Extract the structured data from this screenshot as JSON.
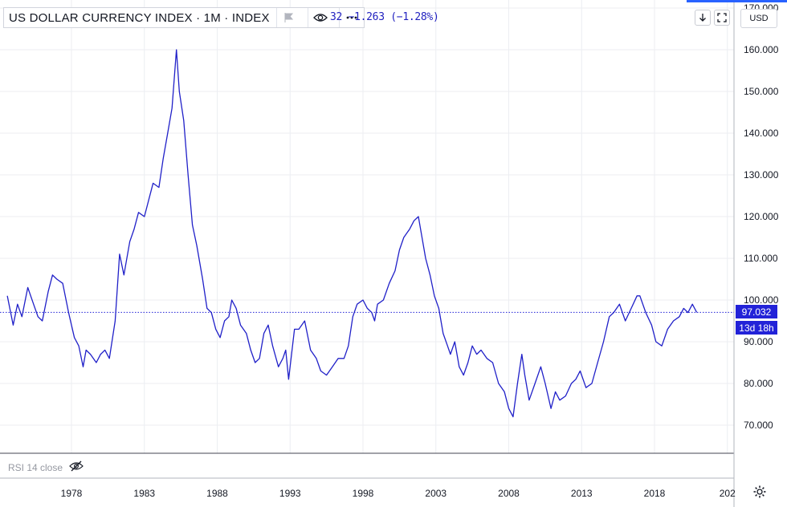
{
  "legend": {
    "symbol_title": "US DOLLAR CURRENCY INDEX · 1M · INDEX",
    "change_text": "32  −1.263 (−1.28%)"
  },
  "currency_badge": "USD",
  "price_tag": "97.032",
  "countdown_tag": "13d 18h",
  "rsi": {
    "label": "RSI 14 close"
  },
  "icons": {
    "legend_tools": [
      "flag-icon",
      "eye-icon",
      "more-icon"
    ],
    "toolbar": [
      "download-icon",
      "fullscreen-icon"
    ],
    "settings": "gear-icon"
  },
  "colors": {
    "line": "#2020c8",
    "price_line": "#2222d8",
    "grid": "#eceef2",
    "axis_text": "#131722"
  },
  "chart_data": {
    "type": "line",
    "title": "",
    "xlabel": "",
    "ylabel": "",
    "y_axis_side": "right",
    "ylim": [
      63,
      170
    ],
    "xlim": [
      1973.6,
      2022.6
    ],
    "y_ticks": [
      "70.000",
      "80.000",
      "90.000",
      "100.000",
      "110.000",
      "120.000",
      "130.000",
      "140.000",
      "150.000",
      "160.000",
      "170.000"
    ],
    "x_ticks": [
      "1978",
      "1983",
      "1988",
      "1993",
      "1998",
      "2003",
      "2008",
      "2013",
      "2018",
      "202"
    ],
    "last_value": 97.032,
    "grid": true,
    "series": [
      {
        "x": [
          1973.6,
          1974.0,
          1974.3,
          1974.6,
          1975.0,
          1975.4,
          1975.7,
          1976.0,
          1976.4,
          1976.7,
          1977.0,
          1977.4,
          1977.8,
          1978.2,
          1978.5,
          1978.8,
          1979.0,
          1979.3,
          1979.7,
          1980.0,
          1980.3,
          1980.6,
          1981.0,
          1981.3,
          1981.6,
          1982.0,
          1982.3,
          1982.6,
          1983.0,
          1983.3,
          1983.6,
          1984.0,
          1984.3,
          1984.6,
          1984.9,
          1985.2,
          1985.4,
          1985.7,
          1986.0,
          1986.3,
          1986.6,
          1987.0,
          1987.3,
          1987.6,
          1987.9,
          1988.2,
          1988.5,
          1988.8,
          1989.0,
          1989.3,
          1989.6,
          1990.0,
          1990.3,
          1990.6,
          1990.9,
          1991.2,
          1991.5,
          1991.8,
          1992.2,
          1992.5,
          1992.7,
          1992.9,
          1993.3,
          1993.6,
          1994.0,
          1994.4,
          1994.8,
          1995.1,
          1995.5,
          1995.9,
          1996.3,
          1996.7,
          1997.0,
          1997.3,
          1997.6,
          1998.0,
          1998.3,
          1998.6,
          1998.8,
          1999.0,
          1999.4,
          1999.8,
          2000.2,
          2000.5,
          2000.8,
          2001.2,
          2001.5,
          2001.8,
          2002.0,
          2002.3,
          2002.6,
          2002.9,
          2003.2,
          2003.5,
          2003.8,
          2004.0,
          2004.3,
          2004.6,
          2004.9,
          2005.2,
          2005.5,
          2005.8,
          2006.1,
          2006.5,
          2006.9,
          2007.3,
          2007.7,
          2008.0,
          2008.3,
          2008.6,
          2008.9,
          2009.1,
          2009.4,
          2009.8,
          2010.2,
          2010.5,
          2010.9,
          2011.2,
          2011.5,
          2011.9,
          2012.3,
          2012.6,
          2012.9,
          2013.3,
          2013.7,
          2014.1,
          2014.5,
          2014.9,
          2015.2,
          2015.6,
          2016.0,
          2016.4,
          2016.8,
          2017.0,
          2017.4,
          2017.8,
          2018.1,
          2018.5,
          2018.9,
          2019.3,
          2019.7,
          2020.0,
          2020.3,
          2020.6,
          2020.9
        ],
        "y": [
          101,
          94,
          99,
          96,
          103,
          99,
          96,
          95,
          102,
          106,
          105,
          104,
          97,
          91,
          89,
          84,
          88,
          87,
          85,
          87,
          88,
          86,
          95,
          111,
          106,
          114,
          117,
          121,
          120,
          124,
          128,
          127,
          134,
          140,
          146,
          160,
          150,
          143,
          130,
          118,
          113,
          105,
          98,
          97,
          93,
          91,
          95,
          96,
          100,
          98,
          94,
          92,
          88,
          85,
          86,
          92,
          94,
          89,
          84,
          86,
          88,
          81,
          93,
          93,
          95,
          88,
          86,
          83,
          82,
          84,
          86,
          86,
          89,
          96,
          99,
          100,
          98,
          97,
          95,
          99,
          100,
          104,
          107,
          112,
          115,
          117,
          119,
          120,
          116,
          110,
          106,
          101,
          98,
          92,
          89,
          87,
          90,
          84,
          82,
          85,
          89,
          87,
          88,
          86,
          85,
          80,
          78,
          74,
          72,
          80,
          87,
          82,
          76,
          80,
          84,
          80,
          74,
          78,
          76,
          77,
          80,
          81,
          83,
          79,
          80,
          85,
          90,
          96,
          97,
          99,
          95,
          98,
          101,
          101,
          97,
          94,
          90,
          89,
          93,
          95,
          96,
          98,
          97,
          99,
          97.032
        ]
      }
    ]
  }
}
